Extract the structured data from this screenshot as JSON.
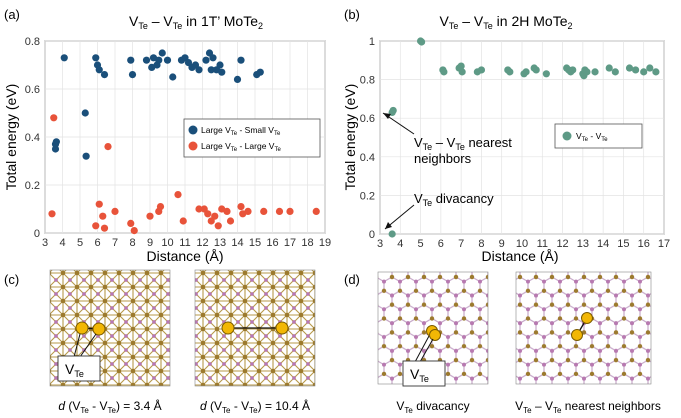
{
  "panel_labels": {
    "a": "(a)",
    "b": "(b)",
    "c": "(c)",
    "d": "(d)"
  },
  "colors": {
    "blue": "#1a4f7a",
    "red": "#e8533a",
    "teal": "#5e9a86",
    "atom_mo": "#9c7a2e",
    "atom_te": "#b779b0",
    "vacancy": "#f2b705"
  },
  "chart_data": [
    {
      "id": "a",
      "type": "scatter",
      "title_main": "V",
      "title_sub1": "Te",
      "title_mid": " – V",
      "title_sub2": "Te",
      "title_rest": " in 1T’ MoTe",
      "title_sub3": "2",
      "xlabel": "Distance (Å)",
      "ylabel": "Total energy (eV)",
      "xlim": [
        3,
        19
      ],
      "ylim": [
        0,
        0.8
      ],
      "xticks": [
        "3",
        "4",
        "5",
        "6",
        "7",
        "8",
        "9",
        "10",
        "11",
        "12",
        "13",
        "14",
        "15",
        "16",
        "17",
        "18",
        "19"
      ],
      "yticks": [
        "0",
        "0.2",
        "0.4",
        "0.6",
        "0.8"
      ],
      "legend": [
        {
          "pre": "Large V",
          "sub": "Te",
          "post": " - Small V",
          "sub2": "Te"
        },
        {
          "pre": "Large V",
          "sub": "Te",
          "post": " - Large V",
          "sub2": "Te"
        }
      ],
      "series": [
        {
          "name": "Large VTe - Small VTe",
          "points": [
            [
              3.6,
              0.35
            ],
            [
              3.6,
              0.37
            ],
            [
              3.65,
              0.38
            ],
            [
              4.1,
              0.73
            ],
            [
              5.3,
              0.5
            ],
            [
              5.35,
              0.32
            ],
            [
              5.9,
              0.73
            ],
            [
              6.0,
              0.7
            ],
            [
              6.1,
              0.68
            ],
            [
              6.4,
              0.66
            ],
            [
              7.9,
              0.72
            ],
            [
              8.0,
              0.66
            ],
            [
              8.8,
              0.72
            ],
            [
              9.1,
              0.69
            ],
            [
              9.2,
              0.73
            ],
            [
              9.4,
              0.7
            ],
            [
              9.5,
              0.72
            ],
            [
              9.7,
              0.75
            ],
            [
              10.0,
              0.72
            ],
            [
              10.3,
              0.65
            ],
            [
              10.8,
              0.72
            ],
            [
              11.0,
              0.73
            ],
            [
              11.2,
              0.71
            ],
            [
              11.4,
              0.69
            ],
            [
              11.6,
              0.7
            ],
            [
              11.8,
              0.68
            ],
            [
              12.2,
              0.72
            ],
            [
              12.4,
              0.75
            ],
            [
              12.5,
              0.68
            ],
            [
              12.6,
              0.73
            ],
            [
              12.8,
              0.68
            ],
            [
              13.0,
              0.7
            ],
            [
              13.1,
              0.67
            ],
            [
              14.0,
              0.64
            ],
            [
              14.2,
              0.72
            ],
            [
              15.1,
              0.66
            ],
            [
              15.3,
              0.67
            ]
          ]
        },
        {
          "name": "Large VTe - Large VTe",
          "points": [
            [
              3.4,
              0.08
            ],
            [
              3.5,
              0.48
            ],
            [
              5.9,
              0.03
            ],
            [
              6.1,
              0.12
            ],
            [
              6.3,
              0.07
            ],
            [
              6.4,
              0.02
            ],
            [
              6.6,
              0.36
            ],
            [
              7.0,
              0.09
            ],
            [
              7.9,
              0.04
            ],
            [
              8.1,
              0.01
            ],
            [
              9.0,
              0.07
            ],
            [
              9.5,
              0.09
            ],
            [
              9.6,
              0.11
            ],
            [
              10.6,
              0.16
            ],
            [
              10.9,
              0.05
            ],
            [
              11.8,
              0.1
            ],
            [
              12.1,
              0.1
            ],
            [
              12.3,
              0.08
            ],
            [
              12.5,
              0.05
            ],
            [
              12.7,
              0.07
            ],
            [
              12.9,
              0.03
            ],
            [
              13.1,
              0.1
            ],
            [
              13.4,
              0.09
            ],
            [
              13.6,
              0.05
            ],
            [
              14.2,
              0.11
            ],
            [
              14.3,
              0.08
            ],
            [
              14.6,
              0.09
            ],
            [
              15.5,
              0.09
            ],
            [
              16.4,
              0.09
            ],
            [
              17.0,
              0.09
            ],
            [
              18.5,
              0.09
            ]
          ]
        }
      ]
    },
    {
      "id": "b",
      "type": "scatter",
      "title_main": "V",
      "title_sub1": "Te",
      "title_mid": " – V",
      "title_sub2": "Te",
      "title_rest": " in 2H MoTe",
      "title_sub3": "2",
      "xlabel": "Distance (Å)",
      "ylabel": "Total energy (eV)",
      "xlim": [
        3,
        17
      ],
      "ylim": [
        0,
        1
      ],
      "xticks": [
        "3",
        "4",
        "5",
        "6",
        "7",
        "8",
        "9",
        "10",
        "11",
        "12",
        "13",
        "14",
        "15",
        "16",
        "17"
      ],
      "yticks": [
        "0",
        "0.2",
        "0.4",
        "0.6",
        "0.8",
        "1"
      ],
      "legend": [
        {
          "pre": "V",
          "sub": "Te",
          "post": " - V",
          "sub2": "Te"
        }
      ],
      "annotations": [
        {
          "line1_pre": "V",
          "line1_sub": "Te",
          "line1_mid": " – V",
          "line1_sub2": "Te",
          "line1_post": " nearest",
          "line2": "neighbors"
        },
        {
          "pre": "V",
          "sub": "Te",
          "post": " divacancy"
        }
      ],
      "series": [
        {
          "name": "VTe - VTe",
          "points": [
            [
              3.6,
              0.0
            ],
            [
              3.6,
              0.63
            ],
            [
              3.65,
              0.64
            ],
            [
              5.0,
              1.0
            ],
            [
              5.05,
              0.995
            ],
            [
              6.1,
              0.85
            ],
            [
              6.15,
              0.84
            ],
            [
              6.9,
              0.86
            ],
            [
              7.0,
              0.87
            ],
            [
              7.05,
              0.84
            ],
            [
              7.8,
              0.84
            ],
            [
              8.0,
              0.85
            ],
            [
              9.3,
              0.85
            ],
            [
              9.4,
              0.84
            ],
            [
              10.1,
              0.83
            ],
            [
              10.2,
              0.84
            ],
            [
              10.6,
              0.86
            ],
            [
              10.7,
              0.85
            ],
            [
              11.2,
              0.83
            ],
            [
              12.2,
              0.86
            ],
            [
              12.3,
              0.85
            ],
            [
              12.4,
              0.84
            ],
            [
              12.5,
              0.85
            ],
            [
              13.0,
              0.83
            ],
            [
              13.05,
              0.82
            ],
            [
              13.1,
              0.85
            ],
            [
              13.2,
              0.84
            ],
            [
              13.6,
              0.84
            ],
            [
              14.3,
              0.86
            ],
            [
              14.6,
              0.84
            ],
            [
              15.3,
              0.86
            ],
            [
              15.6,
              0.85
            ],
            [
              16.0,
              0.84
            ],
            [
              16.3,
              0.86
            ],
            [
              16.6,
              0.84
            ]
          ]
        }
      ]
    }
  ],
  "panel_c": {
    "left_label": "V",
    "left_label_sub": "Te",
    "caption_left": {
      "d": "d",
      "pre": " (V",
      "sub1": "Te",
      "mid": " - V",
      "sub2": "Te",
      "post": ") = 3.4 Å"
    },
    "caption_right": {
      "d": "d",
      "pre": " (V",
      "sub1": "Te",
      "mid": " - V",
      "sub2": "Te",
      "post": ") = 10.4 Å"
    }
  },
  "panel_d": {
    "label": "V",
    "label_sub": "Te",
    "caption_left": {
      "pre": "V",
      "sub": "Te",
      "post": " divacancy"
    },
    "caption_right": {
      "pre": "V",
      "sub": "Te",
      "mid": " – V",
      "sub2": "Te",
      "post": " nearest neighbors"
    }
  }
}
